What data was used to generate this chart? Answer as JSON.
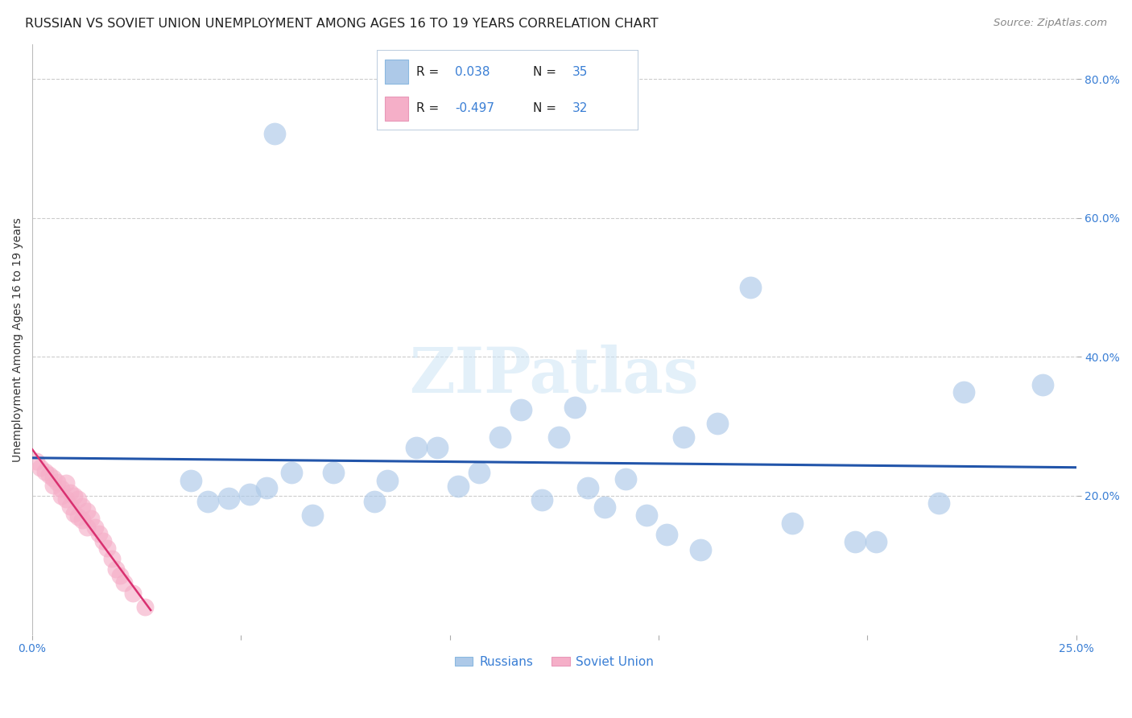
{
  "title": "RUSSIAN VS SOVIET UNION UNEMPLOYMENT AMONG AGES 16 TO 19 YEARS CORRELATION CHART",
  "source": "Source: ZipAtlas.com",
  "ylabel": "Unemployment Among Ages 16 to 19 years",
  "xlim": [
    0.0,
    0.25
  ],
  "ylim": [
    0.0,
    0.85
  ],
  "yticks": [
    0.2,
    0.4,
    0.6,
    0.8
  ],
  "ytick_labels": [
    "20.0%",
    "40.0%",
    "60.0%",
    "80.0%"
  ],
  "xticks": [
    0.0,
    0.05,
    0.1,
    0.15,
    0.2,
    0.25
  ],
  "xtick_labels": [
    "0.0%",
    "",
    "",
    "",
    "",
    "25.0%"
  ],
  "color_russian": "#adc9e8",
  "color_soviet": "#f5afc8",
  "color_russian_line": "#2255aa",
  "color_soviet_line": "#d93070",
  "color_tick_labels": "#3a7fd5",
  "color_grid": "#cccccc",
  "watermark": "ZIPatlas",
  "title_fontsize": 11.5,
  "source_fontsize": 9.5,
  "label_fontsize": 10,
  "tick_fontsize": 10,
  "legend_r_color": "#222222",
  "legend_n_color": "#3a7fd5",
  "legend_val_color": "#3a7fd5",
  "russians_x": [
    0.038,
    0.042,
    0.047,
    0.052,
    0.056,
    0.058,
    0.062,
    0.067,
    0.072,
    0.082,
    0.085,
    0.092,
    0.097,
    0.102,
    0.107,
    0.112,
    0.117,
    0.122,
    0.126,
    0.13,
    0.133,
    0.137,
    0.142,
    0.147,
    0.152,
    0.156,
    0.16,
    0.164,
    0.172,
    0.182,
    0.197,
    0.202,
    0.217,
    0.223,
    0.242
  ],
  "russians_y": [
    0.222,
    0.192,
    0.197,
    0.202,
    0.212,
    0.722,
    0.234,
    0.172,
    0.234,
    0.192,
    0.222,
    0.27,
    0.27,
    0.214,
    0.234,
    0.284,
    0.324,
    0.194,
    0.284,
    0.327,
    0.212,
    0.184,
    0.224,
    0.172,
    0.144,
    0.284,
    0.122,
    0.304,
    0.5,
    0.16,
    0.134,
    0.134,
    0.19,
    0.35,
    0.36
  ],
  "soviet_x": [
    0.001,
    0.002,
    0.003,
    0.004,
    0.005,
    0.005,
    0.006,
    0.007,
    0.007,
    0.008,
    0.008,
    0.009,
    0.009,
    0.01,
    0.01,
    0.011,
    0.011,
    0.012,
    0.012,
    0.013,
    0.013,
    0.014,
    0.015,
    0.016,
    0.017,
    0.018,
    0.019,
    0.02,
    0.021,
    0.022,
    0.024,
    0.027
  ],
  "soviet_y": [
    0.25,
    0.24,
    0.235,
    0.23,
    0.225,
    0.215,
    0.22,
    0.21,
    0.2,
    0.218,
    0.195,
    0.205,
    0.185,
    0.2,
    0.175,
    0.195,
    0.17,
    0.185,
    0.165,
    0.178,
    0.155,
    0.168,
    0.155,
    0.145,
    0.135,
    0.125,
    0.11,
    0.095,
    0.085,
    0.075,
    0.06,
    0.04
  ]
}
